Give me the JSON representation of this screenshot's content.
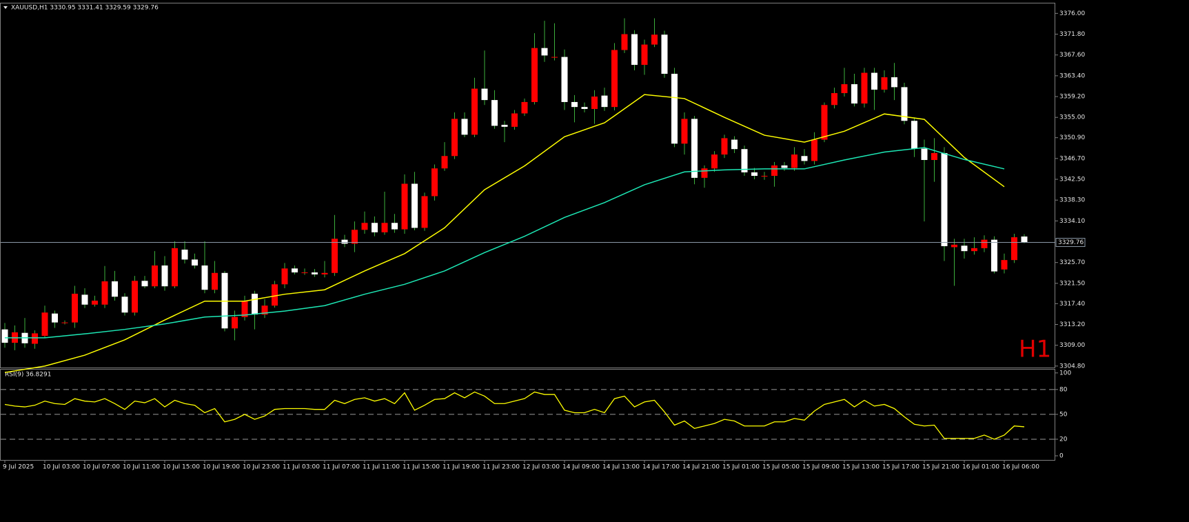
{
  "chart_data": {
    "type": "candlestick",
    "title": "XAUUSD,H1  3330.95 3331.41 3329.59 3329.76",
    "watermark": "H1",
    "up_color": "#ff0000",
    "down_color": "#ffffff",
    "wick_color": "#3cb03c",
    "ylim": [
      3304.5,
      3378
    ],
    "yticks": [
      {
        "value": 3376,
        "label": "3376.00"
      },
      {
        "value": 3371.8,
        "label": "3371.80"
      },
      {
        "value": 3367.6,
        "label": "3367.60"
      },
      {
        "value": 3363.4,
        "label": "3363.40"
      },
      {
        "value": 3359.2,
        "label": "3359.20"
      },
      {
        "value": 3355,
        "label": "3355.00"
      },
      {
        "value": 3350.9,
        "label": "3350.90"
      },
      {
        "value": 3346.7,
        "label": "3346.70"
      },
      {
        "value": 3342.5,
        "label": "3342.50"
      },
      {
        "value": 3338.3,
        "label": "3338.30"
      },
      {
        "value": 3334.1,
        "label": "3334.10"
      },
      {
        "value": 3325.7,
        "label": "3325.70"
      },
      {
        "value": 3321.5,
        "label": "3321.50"
      },
      {
        "value": 3317.4,
        "label": "3317.40"
      },
      {
        "value": 3313.2,
        "label": "3313.20"
      },
      {
        "value": 3309,
        "label": "3309.00"
      },
      {
        "value": 3304.8,
        "label": "3304.80"
      }
    ],
    "last_price": 3329.76,
    "x_labels": [
      "9 Jul 2025",
      "10 Jul 03:00",
      "10 Jul 07:00",
      "10 Jul 11:00",
      "10 Jul 15:00",
      "10 Jul 19:00",
      "10 Jul 23:00",
      "11 Jul 03:00",
      "11 Jul 07:00",
      "11 Jul 11:00",
      "11 Jul 15:00",
      "11 Jul 19:00",
      "11 Jul 23:00",
      "12 Jul 03:00",
      "14 Jul 09:00",
      "14 Jul 13:00",
      "14 Jul 17:00",
      "14 Jul 21:00",
      "15 Jul 01:00",
      "15 Jul 05:00",
      "15 Jul 09:00",
      "15 Jul 13:00",
      "15 Jul 17:00",
      "15 Jul 21:00",
      "16 Jul 01:00",
      "16 Jul 06:00"
    ],
    "ohlc": {
      "open": [
        3312.2,
        3309.5,
        3311.5,
        3309.3,
        3310.9,
        3315.4,
        3313.6,
        3313.6,
        3319.2,
        3317.2,
        3317.2,
        3321.9,
        3318.8,
        3315.6,
        3322,
        3320.9,
        3325.1,
        3320.9,
        3328.3,
        3326.3,
        3325.1,
        3320.2,
        3323.6,
        3312.4,
        3314.7,
        3319.4,
        3315.2,
        3317,
        3321.3,
        3324.5,
        3323.7,
        3323.7,
        3323.3,
        3323.6,
        3330.3,
        3329.5,
        3332.3,
        3333.7,
        3331.8,
        3333.7,
        3332.4,
        3341.6,
        3332.7,
        3339.1,
        3344.7,
        3347.2,
        3354.7,
        3351.5,
        3360.8,
        3358.5,
        3353.5,
        3353.1,
        3355.8,
        3358.1,
        3369,
        3367.2,
        3367.2,
        3358.1,
        3357.1,
        3356.7,
        3359.4,
        3357.1,
        3368.6,
        3371.8,
        3365.6,
        3369.7,
        3371.7,
        3363.8,
        3349.7,
        3354.7,
        3342.8,
        3344.7,
        3347.5,
        3350.5,
        3348.6,
        3343.9,
        3343.2,
        3343.2,
        3345.3,
        3344.8,
        3347.2,
        3346.2,
        3350.5,
        3357.5,
        3359.9,
        3361.7,
        3357.8,
        3364,
        3360.6,
        3363.1,
        3361.1,
        3354.3,
        3348.7,
        3346.4,
        3347.8,
        3328.8,
        3329.1,
        3328,
        3328.6,
        3330.3,
        3324.3,
        3326.2,
        3330.95
      ],
      "high": [
        3313.5,
        3313,
        3314.5,
        3312,
        3317,
        3316,
        3314,
        3321,
        3320.5,
        3319,
        3325,
        3324,
        3319.5,
        3323,
        3323,
        3328,
        3327,
        3330,
        3330,
        3327.5,
        3330,
        3326,
        3324,
        3316,
        3319,
        3320,
        3318.3,
        3322,
        3325.6,
        3325.1,
        3324.5,
        3324.4,
        3326,
        3335.3,
        3331.3,
        3334,
        3336,
        3335,
        3340,
        3335.5,
        3343.5,
        3344,
        3339.8,
        3345.5,
        3350,
        3356,
        3356,
        3363,
        3368.5,
        3360.5,
        3354.3,
        3356.5,
        3358.8,
        3372,
        3374.5,
        3374,
        3368.7,
        3359.5,
        3358,
        3360.5,
        3361,
        3370,
        3375,
        3372.6,
        3370.7,
        3375,
        3372.5,
        3365,
        3356,
        3355.3,
        3345.3,
        3348.2,
        3351.5,
        3351.2,
        3349.3,
        3344.8,
        3344,
        3346,
        3346,
        3349,
        3348.6,
        3352,
        3358,
        3361,
        3365,
        3363.8,
        3365,
        3365,
        3364.5,
        3366,
        3362,
        3355,
        3350.5,
        3350.8,
        3349,
        3330.5,
        3330.5,
        3330.8,
        3331.2,
        3331,
        3327.5,
        3331.5,
        3331.41
      ],
      "low": [
        3308.5,
        3308,
        3308.5,
        3308.3,
        3310.5,
        3312.5,
        3313.2,
        3312.5,
        3316.5,
        3316.8,
        3316.5,
        3318,
        3315,
        3315,
        3320.5,
        3320.5,
        3320,
        3320.5,
        3325.5,
        3324.5,
        3319.5,
        3319.5,
        3311.8,
        3310,
        3314,
        3312.2,
        3314.5,
        3316.6,
        3320.5,
        3323.3,
        3323.2,
        3322.8,
        3322.7,
        3323,
        3328.8,
        3327.8,
        3331.5,
        3331,
        3331.3,
        3331.7,
        3331.5,
        3332.2,
        3332.1,
        3338.2,
        3344.2,
        3346.6,
        3351,
        3351,
        3357.5,
        3352.7,
        3350,
        3352.5,
        3355.3,
        3357.6,
        3366.2,
        3366.5,
        3356.5,
        3354,
        3356,
        3353.7,
        3356.3,
        3356.4,
        3368,
        3364.5,
        3363.6,
        3369.2,
        3363,
        3349,
        3347.5,
        3341.5,
        3340.8,
        3344,
        3346.8,
        3347.8,
        3343.2,
        3342.5,
        3342.4,
        3341,
        3344.2,
        3344.2,
        3345.5,
        3345.5,
        3350,
        3356.8,
        3359.2,
        3357.2,
        3357,
        3356.5,
        3360,
        3358.5,
        3353.6,
        3347,
        3334,
        3342,
        3326,
        3321,
        3326.5,
        3327.3,
        3327.8,
        3323.5,
        3323.5,
        3325.6,
        3329.59
      ],
      "close": [
        3309.5,
        3311.6,
        3309.4,
        3311.4,
        3315.6,
        3313.6,
        3313.6,
        3319.4,
        3317.2,
        3318,
        3321.9,
        3318.8,
        3315.6,
        3322,
        3320.9,
        3325.1,
        3320.9,
        3328.6,
        3326.3,
        3325.1,
        3320.2,
        3323.6,
        3312.4,
        3314.7,
        3318,
        3315.2,
        3317,
        3321.3,
        3324.5,
        3323.7,
        3323.7,
        3323.3,
        3323.6,
        3330.5,
        3329.5,
        3332.3,
        3333.7,
        3331.8,
        3333.7,
        3332.4,
        3341.6,
        3332.7,
        3339.1,
        3344.7,
        3347.2,
        3354.7,
        3351.5,
        3360.8,
        3358.5,
        3353.3,
        3353.1,
        3355.8,
        3358.1,
        3369,
        3367.5,
        3367.2,
        3358.1,
        3357.1,
        3356.7,
        3359.2,
        3357.1,
        3368.6,
        3371.8,
        3365.6,
        3369.7,
        3371.7,
        3363.8,
        3349.7,
        3354.7,
        3342.8,
        3344.7,
        3347.5,
        3350.8,
        3348.6,
        3343.9,
        3343.2,
        3343.2,
        3345.3,
        3344.8,
        3347.5,
        3346.2,
        3350.5,
        3357.5,
        3359.9,
        3361.7,
        3357.8,
        3364,
        3360.6,
        3363.1,
        3361.1,
        3354.3,
        3348.7,
        3346.4,
        3347.8,
        3329,
        3329.3,
        3328,
        3328.6,
        3330.3,
        3323.9,
        3326.2,
        3330.8,
        3329.76
      ]
    },
    "moving_averages": [
      {
        "color": "#ffff00",
        "values": [
          3303.5,
          3304.8,
          3307.0,
          3310.1,
          3314.1,
          3317.9,
          3317.9,
          3319.3,
          3320.2,
          3324.0,
          3327.5,
          3332.7,
          3340.4,
          3345.2,
          3351.1,
          3353.9,
          3359.6,
          3358.8,
          3355.0,
          3351.4,
          3350.0,
          3352.2,
          3355.7,
          3354.6,
          3346.9,
          3341.0
        ]
      },
      {
        "color": "#1de9b6",
        "values": [
          3310.5,
          3310.5,
          3311.3,
          3312.2,
          3313.3,
          3314.7,
          3315.1,
          3315.9,
          3317.0,
          3319.3,
          3321.3,
          3324.0,
          3327.7,
          3331.0,
          3334.8,
          3337.8,
          3341.4,
          3344.0,
          3344.4,
          3344.6,
          3344.6,
          3346.4,
          3348.0,
          3348.9,
          3346.5,
          3344.6
        ]
      }
    ],
    "rsi": {
      "title": "RSI(9) 36.8291",
      "color": "#ffff00",
      "ylim": [
        -5,
        104
      ],
      "yticks": [
        0,
        20,
        50,
        80,
        100
      ],
      "levels": [
        20,
        50,
        80
      ],
      "values": [
        62,
        60,
        59,
        61,
        66,
        63,
        62,
        69,
        66,
        65,
        69,
        63,
        56,
        66,
        64,
        69,
        59,
        67,
        63,
        61,
        52,
        57,
        41,
        44,
        50,
        44,
        48,
        56,
        57,
        57,
        57,
        56,
        56,
        67,
        63,
        68,
        70,
        66,
        69,
        63,
        76,
        55,
        61,
        68,
        69,
        76,
        70,
        77,
        72,
        63,
        63,
        66,
        69,
        77,
        74,
        74,
        55,
        52,
        52,
        56,
        52,
        69,
        72,
        59,
        65,
        67,
        53,
        37,
        42,
        33,
        36,
        39,
        44,
        42,
        36,
        36,
        36,
        41,
        41,
        45,
        43,
        54,
        62,
        65,
        68,
        59,
        67,
        60,
        62,
        57,
        47,
        38,
        36,
        37,
        21,
        21,
        21,
        21,
        25,
        20,
        25,
        36,
        35
      ]
    }
  }
}
